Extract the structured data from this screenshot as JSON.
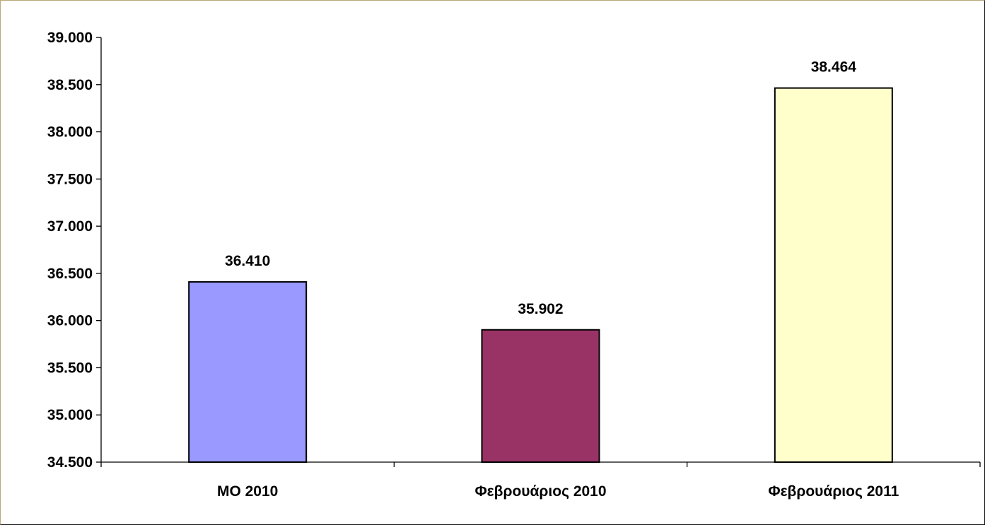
{
  "chart_data": {
    "type": "bar",
    "categories": [
      "ΜΟ 2010",
      "Φεβρουάριος 2010",
      "Φεβρουάριος 2011"
    ],
    "values": [
      36410,
      35902,
      38464
    ],
    "value_labels": [
      "36.410",
      "35.902",
      "38.464"
    ],
    "bar_colors": [
      "#9999ff",
      "#993366",
      "#ffffcc"
    ],
    "ylim": [
      34500,
      39000
    ],
    "yticks": [
      34500,
      35000,
      35500,
      36000,
      36500,
      37000,
      37500,
      38000,
      38500,
      39000
    ],
    "ytick_labels": [
      "34.500",
      "35.000",
      "35.500",
      "36.000",
      "36.500",
      "37.000",
      "37.500",
      "38.000",
      "38.500",
      "39.000"
    ],
    "title": "",
    "xlabel": "",
    "ylabel": "",
    "grid": false,
    "legend": false
  }
}
